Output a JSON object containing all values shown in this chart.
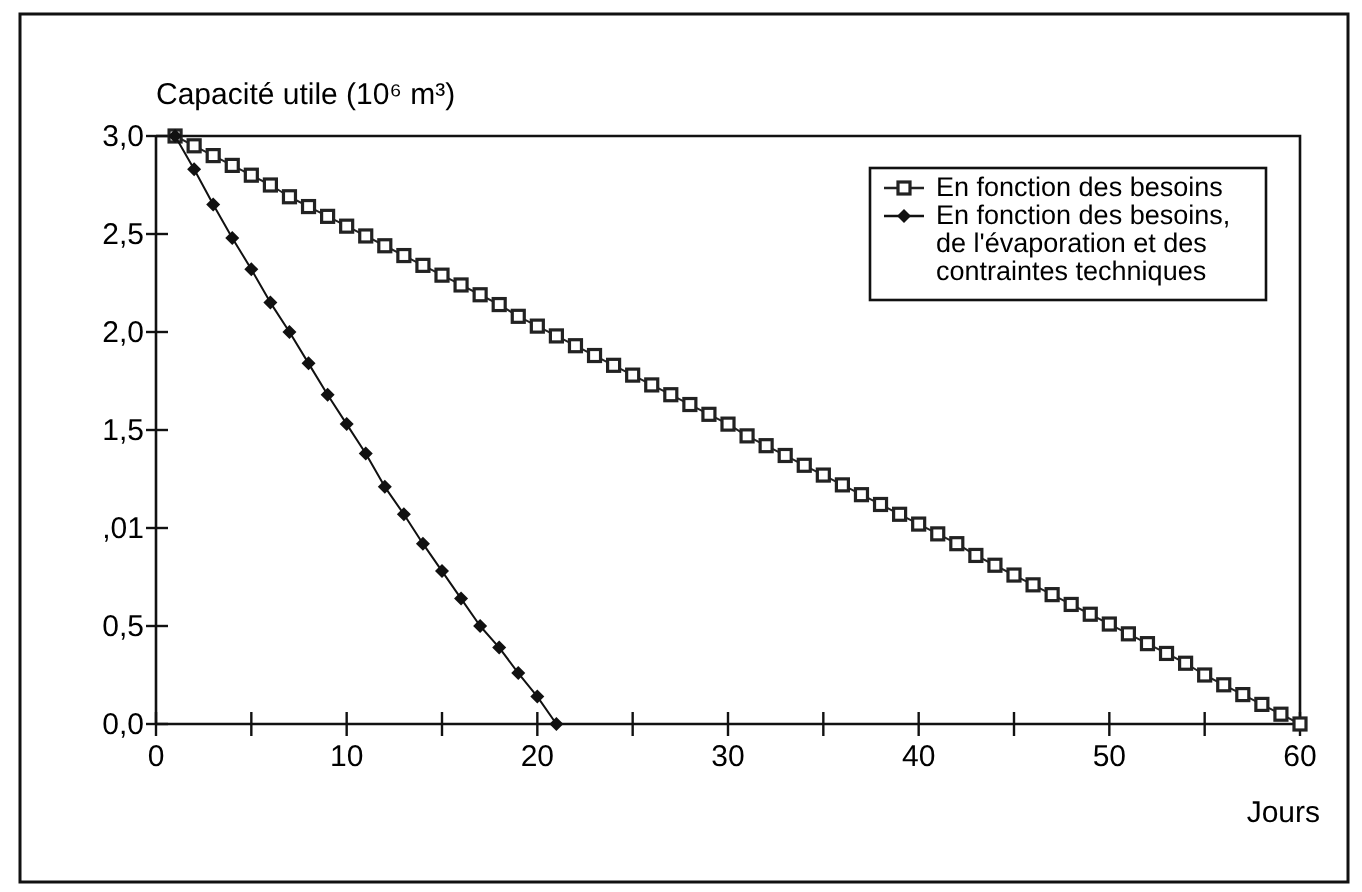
{
  "chart_data": {
    "type": "line",
    "ylabel": "Capacité utile (10⁶ m³)",
    "xlabel": "Jours",
    "xlim": [
      0,
      60
    ],
    "xticks": [
      0,
      {
        "value": 5,
        "label": null
      },
      10,
      {
        "value": 15,
        "label": null
      },
      20,
      {
        "value": 25,
        "label": null
      },
      30,
      {
        "value": 35,
        "label": null
      },
      40,
      {
        "value": 45,
        "label": null
      },
      50,
      {
        "value": 55,
        "label": null
      },
      60
    ],
    "ylim": [
      0,
      3
    ],
    "yticks": [
      {
        "value": 0,
        "label": "0,0"
      },
      {
        "value": 0.5,
        "label": "0,5"
      },
      {
        "value": 1,
        "label": ",01"
      },
      {
        "value": 1.5,
        "label": "1,5"
      },
      {
        "value": 2,
        "label": "2,0"
      },
      {
        "value": 2.5,
        "label": "2,5"
      },
      {
        "value": 3,
        "label": "3,0"
      }
    ],
    "grid": false,
    "legend": "top right",
    "line_style": "solid",
    "series": [
      {
        "name": "En fonction des besoins",
        "color": "#222222",
        "marker": "square",
        "x": [
          1,
          2,
          3,
          4,
          5,
          6,
          7,
          8,
          9,
          10,
          11,
          12,
          13,
          14,
          15,
          16,
          17,
          18,
          19,
          20,
          21,
          22,
          23,
          24,
          25,
          26,
          27,
          28,
          29,
          30,
          31,
          32,
          33,
          34,
          35,
          36,
          37,
          38,
          39,
          40,
          41,
          42,
          43,
          44,
          45,
          46,
          47,
          48,
          49,
          50,
          51,
          52,
          53,
          54,
          55,
          56,
          57,
          58,
          59,
          60
        ],
        "values": [
          3.0,
          2.95,
          2.9,
          2.85,
          2.8,
          2.75,
          2.69,
          2.64,
          2.59,
          2.54,
          2.49,
          2.44,
          2.39,
          2.34,
          2.29,
          2.24,
          2.19,
          2.14,
          2.08,
          2.03,
          1.98,
          1.93,
          1.88,
          1.83,
          1.78,
          1.73,
          1.68,
          1.63,
          1.58,
          1.53,
          1.47,
          1.42,
          1.37,
          1.32,
          1.27,
          1.22,
          1.17,
          1.12,
          1.07,
          1.02,
          0.97,
          0.92,
          0.86,
          0.81,
          0.76,
          0.71,
          0.66,
          0.61,
          0.56,
          0.51,
          0.46,
          0.41,
          0.36,
          0.31,
          0.25,
          0.2,
          0.15,
          0.1,
          0.05,
          0.0
        ]
      },
      {
        "name": "En fonction des besoins,\nde l'évaporation et des\ncontraintes techniques",
        "color": "#111111",
        "marker": "diamond",
        "x": [
          1,
          2,
          3,
          4,
          5,
          6,
          7,
          8,
          9,
          10,
          11,
          12,
          13,
          14,
          15,
          16,
          17,
          18,
          19,
          20,
          21
        ],
        "values": [
          3.0,
          2.83,
          2.65,
          2.48,
          2.32,
          2.15,
          2.0,
          1.84,
          1.68,
          1.53,
          1.38,
          1.21,
          1.07,
          0.92,
          0.78,
          0.64,
          0.5,
          0.39,
          0.26,
          0.14,
          0.0
        ]
      }
    ]
  }
}
